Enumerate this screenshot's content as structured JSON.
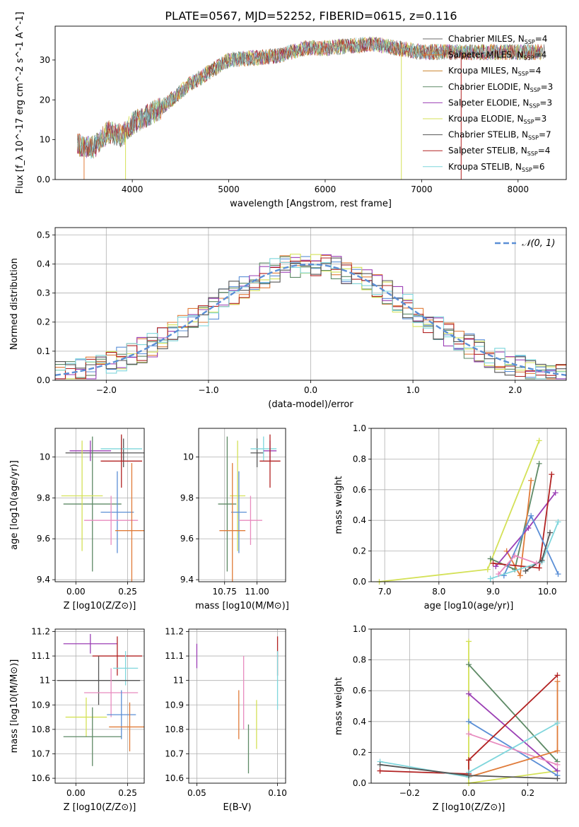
{
  "figure": {
    "title": "PLATE=0567, MJD=52252, FIBERID=0615, z=0.116"
  },
  "colors": {
    "grid": "#b0b0b0",
    "reference_curve": "#5b8fd6",
    "c_mil": "#6b6b6b",
    "s_mil": "#e07b39",
    "k_mil": "#c9822b",
    "c_elo": "#5e8a66",
    "s_elo": "#9b3fb5",
    "k_elo": "#d4e157",
    "c_ste": "#555555",
    "s_ste": "#b22222",
    "k_ste": "#7fd6dc",
    "blue": "#5b8fd6",
    "pink": "#e88bbf",
    "green": "#5e8a66",
    "orange": "#e07b39",
    "purple": "#9b3fb5",
    "lime": "#d4e157",
    "red": "#b22222",
    "cyan": "#7fd6dc",
    "dark": "#555555"
  },
  "chart_data": [
    {
      "id": "spectrum",
      "type": "line",
      "xlabel": "wavelength [Angstrom, rest frame]",
      "ylabel": "Flux [f_λ 10^-17 erg cm^-2 s^-1 A^-1]",
      "xlim": [
        3200,
        8500
      ],
      "ylim": [
        0,
        38.5
      ],
      "xticks": [
        4000,
        5000,
        6000,
        7000,
        8000
      ],
      "yticks": [
        0,
        10,
        20,
        30
      ],
      "grid": false,
      "legend_position": "top-right",
      "spectrum_knots": [
        [
          3400,
          9
        ],
        [
          3600,
          8
        ],
        [
          3750,
          12
        ],
        [
          3900,
          11
        ],
        [
          4000,
          14
        ],
        [
          4300,
          18
        ],
        [
          4600,
          24
        ],
        [
          5000,
          30
        ],
        [
          5500,
          31
        ],
        [
          5800,
          33
        ],
        [
          6000,
          33
        ],
        [
          6500,
          34
        ],
        [
          7000,
          32
        ],
        [
          7500,
          32
        ],
        [
          8000,
          32
        ],
        [
          8300,
          32
        ]
      ],
      "series": [
        {
          "name": "Chabrier MILES, N",
          "suffix": "=4",
          "color_key": "c_mil"
        },
        {
          "name": "Salpeter MILES, N",
          "suffix": "=4",
          "color_key": "s_mil"
        },
        {
          "name": "Kroupa MILES, N",
          "suffix": "=4",
          "color_key": "k_mil"
        },
        {
          "name": "Chabrier ELODIE, N",
          "suffix": "=3",
          "color_key": "c_elo"
        },
        {
          "name": "Salpeter ELODIE, N",
          "suffix": "=3",
          "color_key": "s_elo"
        },
        {
          "name": "Kroupa ELODIE, N",
          "suffix": "=3",
          "color_key": "k_elo"
        },
        {
          "name": "Chabrier STELIB, N",
          "suffix": "=7",
          "color_key": "c_ste"
        },
        {
          "name": "Salpeter STELIB, N",
          "suffix": "=4",
          "color_key": "s_ste"
        },
        {
          "name": "Kroupa STELIB, N",
          "suffix": "=6",
          "color_key": "k_ste"
        }
      ],
      "legend_sub": "SSP"
    },
    {
      "id": "residuals",
      "type": "line",
      "xlabel": "(data-model)/error",
      "ylabel": "Normed distribution",
      "xlim": [
        -2.5,
        2.5
      ],
      "ylim": [
        0,
        0.525
      ],
      "xticks": [
        -2,
        -1,
        0,
        1,
        2
      ],
      "yticks": [
        0,
        0.1,
        0.2,
        0.3,
        0.4,
        0.5
      ],
      "grid": true,
      "legend_position": "top-right",
      "reference_label": "𝒩(0, 1)",
      "bin_width": 0.1,
      "hist_colors": [
        "blue",
        "orange",
        "green",
        "purple",
        "lime",
        "red",
        "cyan",
        "dark"
      ]
    },
    {
      "id": "age_Z",
      "type": "scatter",
      "xlabel": "Z [log10(Z/Z⊙)]",
      "ylabel": "age [log10(age/yr)]",
      "xlim": [
        -0.1,
        0.33
      ],
      "ylim": [
        9.39,
        10.14
      ],
      "xticks": [
        0,
        0.25
      ],
      "xtick_labels": [
        "0.00",
        "0.25"
      ],
      "yticks": [
        9.4,
        9.6,
        9.8,
        10.0
      ],
      "grid": true,
      "points": [
        {
          "x": 0.23,
          "y": 10.02,
          "xerr": 0.28,
          "yerr": 0.07,
          "c": "dark"
        },
        {
          "x": 0.22,
          "y": 10.04,
          "xerr": 0.1,
          "yerr": 0.06,
          "c": "cyan"
        },
        {
          "x": 0.07,
          "y": 10.03,
          "xerr": 0.1,
          "yerr": 0.05,
          "c": "purple"
        },
        {
          "x": 0.22,
          "y": 9.98,
          "xerr": 0.1,
          "yerr": 0.13,
          "c": "red"
        },
        {
          "x": 0.08,
          "y": 9.77,
          "xerr": 0.14,
          "yerr": 0.33,
          "c": "green"
        },
        {
          "x": 0.03,
          "y": 9.81,
          "xerr": 0.1,
          "yerr": 0.27,
          "c": "lime"
        },
        {
          "x": 0.2,
          "y": 9.73,
          "xerr": 0.08,
          "yerr": 0.2,
          "c": "blue"
        },
        {
          "x": 0.17,
          "y": 9.69,
          "xerr": 0.13,
          "yerr": 0.12,
          "c": "pink"
        },
        {
          "x": 0.27,
          "y": 9.64,
          "xerr": 0.08,
          "yerr": 0.33,
          "c": "orange"
        }
      ]
    },
    {
      "id": "age_mass",
      "type": "scatter",
      "xlabel": "mass [log10(M/M⊙)]",
      "ylabel": "",
      "xlim": [
        10.55,
        11.22
      ],
      "ylim": [
        9.39,
        10.14
      ],
      "xticks": [
        10.75,
        11.0
      ],
      "xtick_labels": [
        "10.75",
        "11.00"
      ],
      "yticks": [
        9.4,
        9.6,
        9.8,
        10.0
      ],
      "grid": true,
      "points": [
        {
          "x": 11.0,
          "y": 10.02,
          "xerr": 0.05,
          "yerr": 0.07,
          "c": "dark"
        },
        {
          "x": 11.05,
          "y": 10.04,
          "xerr": 0.1,
          "yerr": 0.06,
          "c": "cyan"
        },
        {
          "x": 11.1,
          "y": 10.03,
          "xerr": 0.05,
          "yerr": 0.05,
          "c": "purple"
        },
        {
          "x": 11.1,
          "y": 9.98,
          "xerr": 0.08,
          "yerr": 0.13,
          "c": "red"
        },
        {
          "x": 10.77,
          "y": 9.77,
          "xerr": 0.07,
          "yerr": 0.33,
          "c": "green"
        },
        {
          "x": 10.85,
          "y": 9.81,
          "xerr": 0.06,
          "yerr": 0.27,
          "c": "lime"
        },
        {
          "x": 10.86,
          "y": 9.73,
          "xerr": 0.06,
          "yerr": 0.2,
          "c": "blue"
        },
        {
          "x": 10.95,
          "y": 9.69,
          "xerr": 0.09,
          "yerr": 0.12,
          "c": "pink"
        },
        {
          "x": 10.81,
          "y": 9.64,
          "xerr": 0.1,
          "yerr": 0.33,
          "c": "orange"
        }
      ]
    },
    {
      "id": "weight_age",
      "type": "line",
      "xlabel": "age [log10(age/yr)]",
      "ylabel": "mass weight",
      "xlim": [
        6.75,
        10.35
      ],
      "ylim": [
        0,
        1
      ],
      "xticks": [
        7,
        8,
        9,
        10
      ],
      "yticks": [
        0,
        0.2,
        0.4,
        0.6,
        0.8,
        1.0
      ],
      "grid": true,
      "series": [
        {
          "c": "lime",
          "pts": [
            [
              6.9,
              0.0
            ],
            [
              8.9,
              0.08
            ],
            [
              9.85,
              0.92
            ]
          ]
        },
        {
          "c": "green",
          "pts": [
            [
              8.95,
              0.15
            ],
            [
              9.4,
              0.08
            ],
            [
              9.85,
              0.77
            ]
          ]
        },
        {
          "c": "orange",
          "pts": [
            [
              9.25,
              0.2
            ],
            [
              9.5,
              0.04
            ],
            [
              9.7,
              0.66
            ]
          ]
        },
        {
          "c": "purple",
          "pts": [
            [
              9.05,
              0.1
            ],
            [
              9.65,
              0.35
            ],
            [
              10.15,
              0.58
            ]
          ]
        },
        {
          "c": "red",
          "pts": [
            [
              9.0,
              0.12
            ],
            [
              9.85,
              0.09
            ],
            [
              10.08,
              0.7
            ]
          ]
        },
        {
          "c": "blue",
          "pts": [
            [
              9.2,
              0.04
            ],
            [
              9.7,
              0.43
            ],
            [
              10.2,
              0.05
            ]
          ]
        },
        {
          "c": "cyan",
          "pts": [
            [
              8.95,
              0.02
            ],
            [
              9.9,
              0.13
            ],
            [
              10.2,
              0.39
            ]
          ]
        },
        {
          "c": "dark",
          "pts": [
            [
              9.6,
              0.07
            ],
            [
              9.9,
              0.14
            ],
            [
              10.05,
              0.32
            ]
          ]
        },
        {
          "c": "pink",
          "pts": [
            [
              9.1,
              0.05
            ],
            [
              9.4,
              0.17
            ],
            [
              9.8,
              0.12
            ]
          ]
        }
      ]
    },
    {
      "id": "mass_Z",
      "type": "scatter",
      "xlabel": "Z [log10(Z/Z⊙)]",
      "ylabel": "mass [log10(M/M⊙)]",
      "xlim": [
        -0.1,
        0.33
      ],
      "ylim": [
        10.58,
        11.21
      ],
      "xticks": [
        0,
        0.25
      ],
      "xtick_labels": [
        "0.00",
        "0.25"
      ],
      "yticks": [
        10.6,
        10.7,
        10.8,
        10.9,
        11.0,
        11.1,
        11.2
      ],
      "grid": true,
      "points": [
        {
          "x": 0.07,
          "y": 11.15,
          "xerr": 0.13,
          "yerr": 0.04,
          "c": "purple"
        },
        {
          "x": 0.2,
          "y": 11.1,
          "xerr": 0.12,
          "yerr": 0.08,
          "c": "red"
        },
        {
          "x": 0.24,
          "y": 11.05,
          "xerr": 0.06,
          "yerr": 0.07,
          "c": "cyan"
        },
        {
          "x": 0.11,
          "y": 11.0,
          "xerr": 0.2,
          "yerr": 0.1,
          "c": "dark"
        },
        {
          "x": 0.17,
          "y": 10.95,
          "xerr": 0.13,
          "yerr": 0.1,
          "c": "pink"
        },
        {
          "x": 0.05,
          "y": 10.85,
          "xerr": 0.1,
          "yerr": 0.08,
          "c": "lime"
        },
        {
          "x": 0.22,
          "y": 10.86,
          "xerr": 0.07,
          "yerr": 0.1,
          "c": "blue"
        },
        {
          "x": 0.26,
          "y": 10.81,
          "xerr": 0.1,
          "yerr": 0.1,
          "c": "orange"
        },
        {
          "x": 0.08,
          "y": 10.77,
          "xerr": 0.14,
          "yerr": 0.12,
          "c": "green"
        }
      ]
    },
    {
      "id": "mass_ebv",
      "type": "scatter",
      "xlabel": "E(B-V)",
      "ylabel": "",
      "xlim": [
        0.045,
        0.105
      ],
      "ylim": [
        10.58,
        11.21
      ],
      "xticks": [
        0.05,
        0.1
      ],
      "xtick_labels": [
        "0.05",
        "0.10"
      ],
      "yticks": [
        10.6,
        10.7,
        10.8,
        10.9,
        11.0,
        11.1,
        11.2
      ],
      "grid": true,
      "points": [
        {
          "x": 0.05,
          "y": 11.1,
          "xerr": 0,
          "yerr": 0.05,
          "c": "purple"
        },
        {
          "x": 0.1,
          "y": 11.1,
          "xerr": 0,
          "yerr": 0.08,
          "c": "red"
        },
        {
          "x": 0.1,
          "y": 11.0,
          "xerr": 0,
          "yerr": 0.12,
          "c": "cyan"
        },
        {
          "x": 0.079,
          "y": 10.95,
          "xerr": 0,
          "yerr": 0.15,
          "c": "pink"
        },
        {
          "x": 0.076,
          "y": 10.86,
          "xerr": 0,
          "yerr": 0.1,
          "c": "orange"
        },
        {
          "x": 0.087,
          "y": 10.82,
          "xerr": 0,
          "yerr": 0.1,
          "c": "lime"
        },
        {
          "x": 0.082,
          "y": 10.72,
          "xerr": 0,
          "yerr": 0.1,
          "c": "green"
        }
      ]
    },
    {
      "id": "weight_Z",
      "type": "line",
      "xlabel": "Z [log10(Z/Z⊙)]",
      "ylabel": "mass weight",
      "xlim": [
        -0.33,
        0.33
      ],
      "ylim": [
        0,
        1
      ],
      "xticks": [
        -0.2,
        0,
        0.2
      ],
      "xtick_labels": [
        "−0.2",
        "0.0",
        "0.2"
      ],
      "yticks": [
        0,
        0.2,
        0.4,
        0.6,
        0.8,
        1.0
      ],
      "grid": true,
      "series": [
        {
          "c": "lime",
          "pts": [
            [
              0.0,
              0.92
            ],
            [
              0.0,
              0.0
            ],
            [
              0.3,
              0.08
            ]
          ]
        },
        {
          "c": "green",
          "pts": [
            [
              0.0,
              0.77
            ],
            [
              0.3,
              0.14
            ]
          ]
        },
        {
          "c": "purple",
          "pts": [
            [
              0.0,
              0.58
            ],
            [
              0.3,
              0.08
            ]
          ]
        },
        {
          "c": "blue",
          "pts": [
            [
              0.0,
              0.4
            ],
            [
              0.3,
              0.05
            ]
          ]
        },
        {
          "c": "pink",
          "pts": [
            [
              0.0,
              0.32
            ],
            [
              0.3,
              0.12
            ]
          ]
        },
        {
          "c": "red",
          "pts": [
            [
              -0.3,
              0.08
            ],
            [
              0.0,
              0.06
            ],
            [
              0.0,
              0.15
            ],
            [
              0.3,
              0.7
            ]
          ]
        },
        {
          "c": "orange",
          "pts": [
            [
              0.0,
              0.04
            ],
            [
              0.3,
              0.21
            ],
            [
              0.3,
              0.66
            ]
          ]
        },
        {
          "c": "cyan",
          "pts": [
            [
              -0.3,
              0.14
            ],
            [
              0.0,
              0.04
            ],
            [
              0.0,
              0.07
            ],
            [
              0.3,
              0.39
            ]
          ]
        },
        {
          "c": "dark",
          "pts": [
            [
              -0.3,
              0.12
            ],
            [
              0.0,
              0.05
            ],
            [
              0.3,
              0.03
            ]
          ]
        }
      ]
    }
  ]
}
